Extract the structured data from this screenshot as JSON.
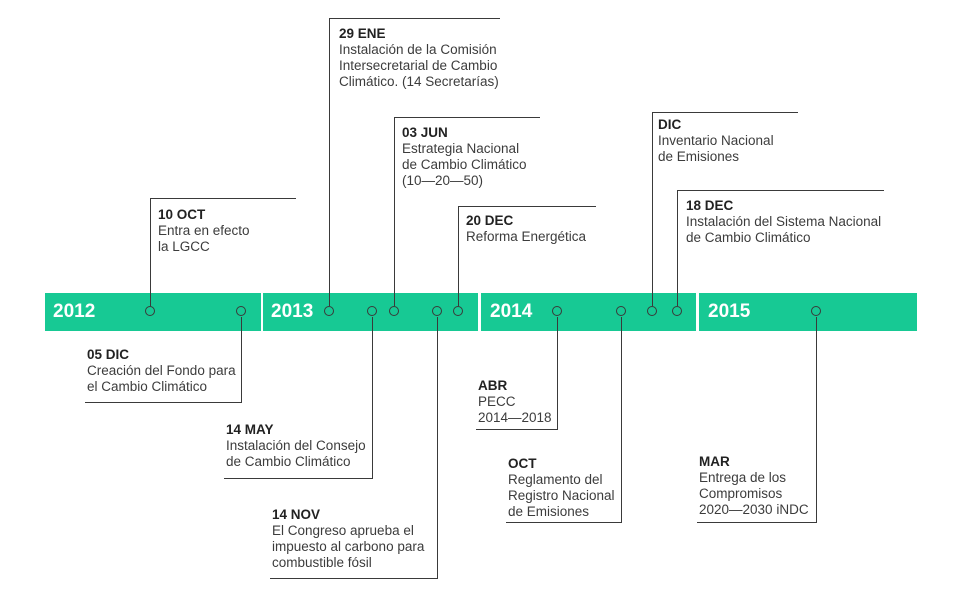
{
  "years": [
    "2012",
    "2013",
    "2014",
    "2015"
  ],
  "events": {
    "e_29ene": {
      "date": "29 ENE",
      "text": "Instalación de la Comisión\nIntersecretarial de Cambio\nClimático. (14 Secretarías)"
    },
    "e_03jun": {
      "date": "03 JUN",
      "text": "Estrategia Nacional\nde Cambio Climático\n(10—20—50)"
    },
    "e_dic_top": {
      "date": "DIC",
      "text": "Inventario Nacional\nde Emisiones"
    },
    "e_18dec": {
      "date": "18 DEC",
      "text": "Instalación del Sistema Nacional\nde Cambio Climático"
    },
    "e_10oct": {
      "date": "10 OCT",
      "text": "Entra en efecto\nla LGCC"
    },
    "e_20dec": {
      "date": "20 DEC",
      "text": "Reforma Energética"
    },
    "e_05dic": {
      "date": "05 DIC",
      "text": "Creación del Fondo para\nel Cambio Climático"
    },
    "e_14may": {
      "date": "14 MAY",
      "text": "Instalación del Consejo\nde Cambio Climático"
    },
    "e_14nov": {
      "date": "14 NOV",
      "text": "El Congreso aprueba el\nimpuesto al carbono para\ncombustible fósil"
    },
    "e_abr": {
      "date": "ABR",
      "text": "PECC\n2014—2018"
    },
    "e_oct": {
      "date": "OCT",
      "text": "Reglamento del\nRegistro Nacional\nde Emisiones"
    },
    "e_mar": {
      "date": "MAR",
      "text": "Entrega de los\nCompromisos\n2020—2030 iNDC"
    }
  }
}
